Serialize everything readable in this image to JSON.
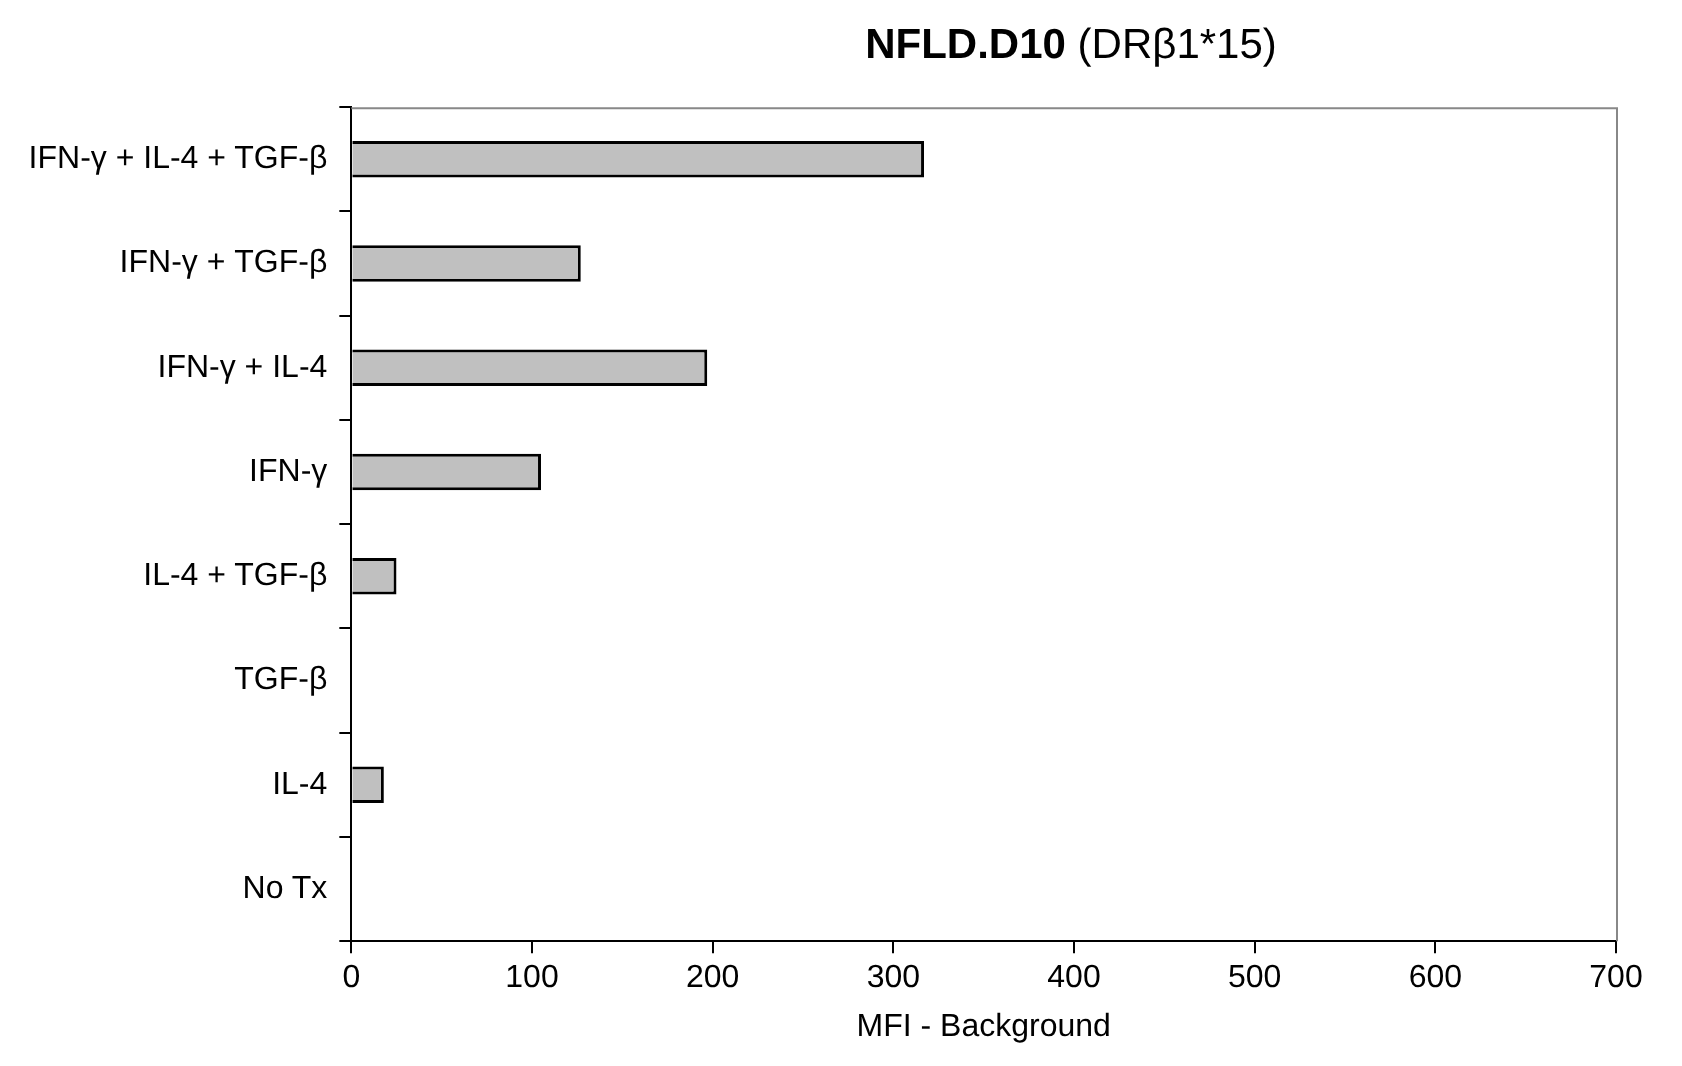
{
  "chart_data": {
    "type": "bar",
    "orientation": "horizontal",
    "title": "NFLD.D10 (DRβ1*15)",
    "xlabel": "MFI - Background",
    "categories": [
      "IFN-γ + IL-4 + TGF-β",
      "IFN-γ + TGF-β",
      "IFN-γ + IL-4",
      "IFN-γ",
      "IL-4 + TGF-β",
      "TGF-β",
      "IL-4",
      "No Tx"
    ],
    "values": [
      317,
      127,
      197,
      105,
      25,
      0,
      18,
      0
    ],
    "color": "#c0c0c0",
    "xlim": [
      0,
      700
    ],
    "xticks": [
      0,
      100,
      200,
      300,
      400,
      500,
      600,
      700
    ],
    "grid": false,
    "legend": false
  }
}
